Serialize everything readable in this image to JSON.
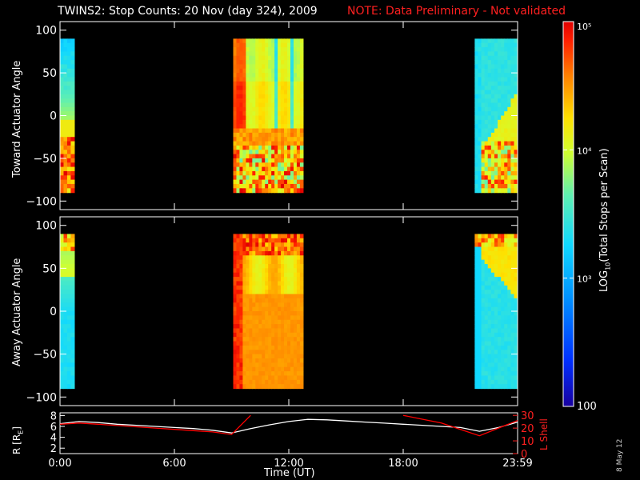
{
  "title": "TWINS2: Stop Counts: 20 Nov (day 324), 2009",
  "note": "NOTE: Data Preliminary - Not validated",
  "date_stamp": "8 May 12",
  "colors": {
    "note": "#ff2020",
    "black": "#000000",
    "lshell_line": "#ff0000",
    "r_line": "#ffffff"
  },
  "colorbar": {
    "label": "LOG10(Total Stops per Scan)",
    "label_main": "LOG",
    "label_sub": "10",
    "label_rest": "(Total Stops per Scan)",
    "ticks": [
      "100",
      "10³",
      "10⁴",
      "10⁵"
    ],
    "range": [
      100,
      100000
    ],
    "scale": "log"
  },
  "chart_data": [
    {
      "type": "heatmap",
      "name": "toward-panel",
      "ylabel": "Toward Actuator Angle",
      "ylim": [
        -110,
        110
      ],
      "yticks": [
        "100",
        "50",
        "0",
        "-50",
        "-100"
      ],
      "xlim_hours": [
        0,
        24
      ],
      "segments": [
        {
          "start": "0:00",
          "end": "0:45",
          "pattern": "toward"
        },
        {
          "start": "9:05",
          "end": "12:45",
          "pattern": "toward-mid"
        },
        {
          "start": "21:45",
          "end": "23:59",
          "pattern": "toward-late"
        }
      ],
      "angle_range": [
        -90,
        90
      ]
    },
    {
      "type": "heatmap",
      "name": "away-panel",
      "ylabel": "Away Actuator Angle",
      "ylim": [
        -110,
        110
      ],
      "yticks": [
        "100",
        "50",
        "0",
        "-50",
        "-100"
      ],
      "xlim_hours": [
        0,
        24
      ],
      "segments": [
        {
          "start": "0:00",
          "end": "0:45",
          "pattern": "away"
        },
        {
          "start": "9:05",
          "end": "12:45",
          "pattern": "away-mid"
        },
        {
          "start": "21:45",
          "end": "23:59",
          "pattern": "away-late"
        }
      ],
      "angle_range": [
        -90,
        90
      ]
    },
    {
      "type": "line",
      "name": "orbit-panel",
      "ylabel_left": "R [RE]",
      "ylabel_left_main": "R [R",
      "ylabel_left_sub": "E",
      "ylabel_left_end": "]",
      "ylabel_right": "L Shell",
      "yticks_left": [
        "8",
        "6",
        "4",
        "2"
      ],
      "yticks_right": [
        "30",
        "20",
        "10",
        "0"
      ],
      "ylim_left": [
        1,
        8.5
      ],
      "ylim_right": [
        0,
        32
      ],
      "x_hours": [
        0,
        1,
        2,
        3,
        4,
        5,
        6,
        7,
        8,
        9,
        10,
        11,
        12,
        13,
        14,
        15,
        16,
        17,
        18,
        19,
        20,
        21,
        22,
        23,
        24
      ],
      "series": [
        {
          "values": [
            6.5,
            6.9,
            6.7,
            6.4,
            6.2,
            6.0,
            5.8,
            5.6,
            5.3,
            4.8,
            5.6,
            6.3,
            6.9,
            7.3,
            7.2,
            7.0,
            6.8,
            6.6,
            6.4,
            6.2,
            6.0,
            5.8,
            5.1,
            5.8,
            6.8
          ]
        },
        {
          "values": [
            23,
            24,
            23,
            22,
            21,
            20,
            19,
            18,
            17,
            15,
            30,
            null,
            null,
            null,
            null,
            null,
            null,
            null,
            30,
            27,
            24,
            19,
            14,
            20,
            26
          ]
        }
      ],
      "xticks": [
        "0:00",
        "6:00",
        "12:00",
        "18:00",
        "23:59"
      ],
      "xlabel": "Time (UT)"
    }
  ]
}
